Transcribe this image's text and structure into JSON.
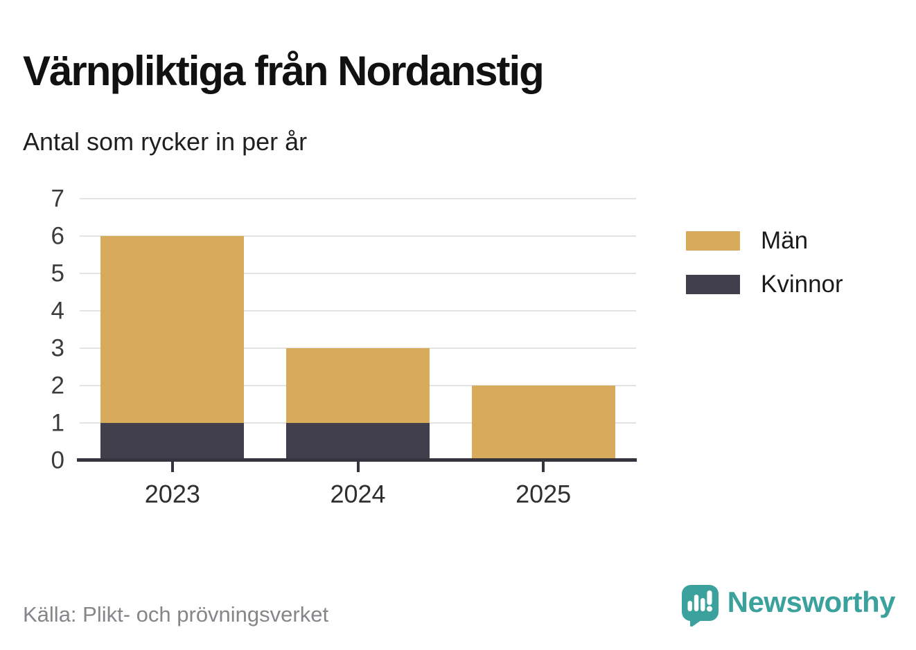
{
  "header": {
    "title": "Värnpliktiga från Nordanstig",
    "subtitle": "Antal som rycker in per år"
  },
  "chart_data": {
    "type": "bar",
    "stacked": true,
    "title": "Värnpliktiga från Nordanstig",
    "subtitle": "Antal som rycker in per år",
    "categories": [
      "2023",
      "2024",
      "2025"
    ],
    "series": [
      {
        "name": "Män",
        "color": "#d8aa5b",
        "values": [
          5,
          2,
          2
        ]
      },
      {
        "name": "Kvinnor",
        "color": "#413f4c",
        "values": [
          1,
          1,
          0
        ]
      }
    ],
    "stack_bottom_to_top": [
      "Kvinnor",
      "Män"
    ],
    "totals": [
      6,
      3,
      2
    ],
    "xlabel": "",
    "ylabel": "",
    "ylim": [
      0,
      7
    ],
    "yticks": [
      0,
      1,
      2,
      3,
      4,
      5,
      6,
      7
    ],
    "grid": true,
    "gridline_color": "#e2e2e2",
    "axis_color": "#35333d",
    "legend_position": "right"
  },
  "legend": {
    "items": [
      {
        "label": "Män",
        "color": "#d8aa5b"
      },
      {
        "label": "Kvinnor",
        "color": "#413f4c"
      }
    ]
  },
  "footer": {
    "source": "Källa: Plikt- och prövningsverket",
    "brand_name": "Newsworthy",
    "brand_color": "#3aa19c"
  }
}
